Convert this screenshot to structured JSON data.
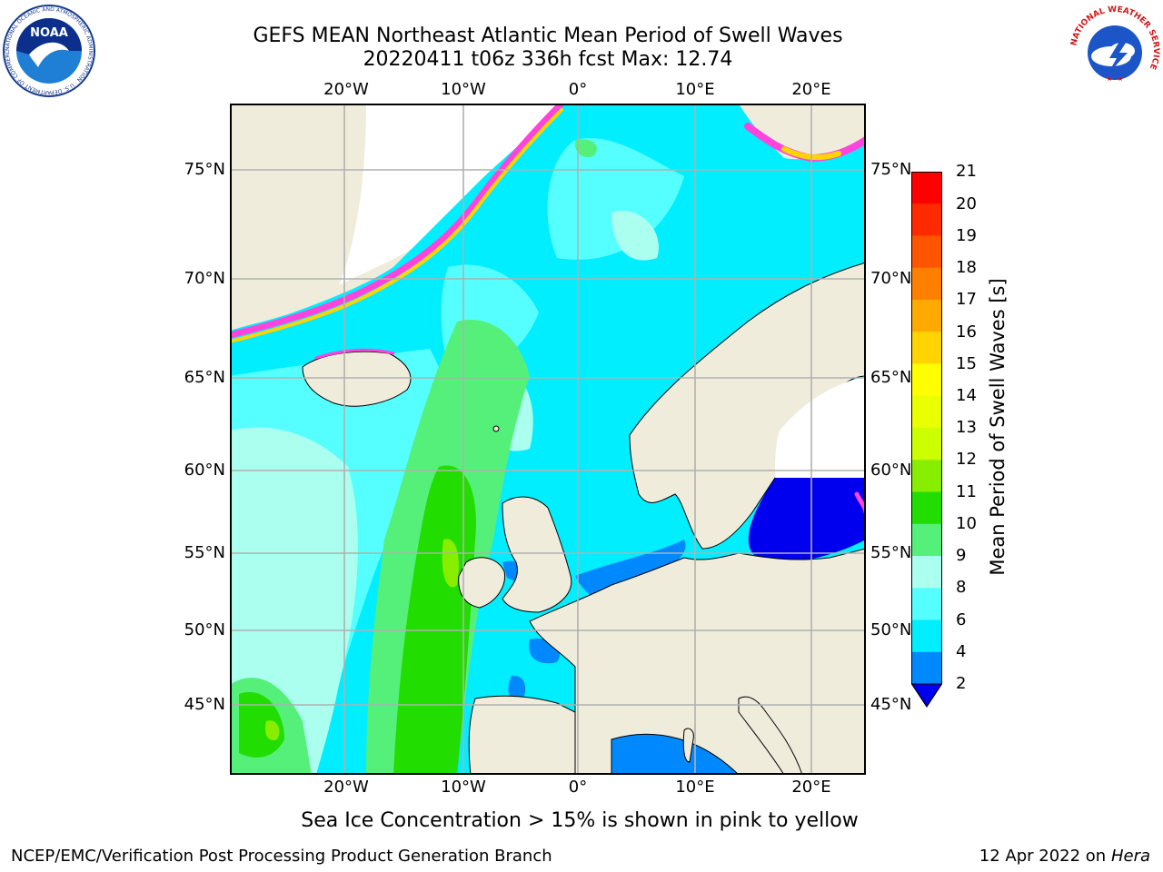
{
  "header": {
    "title_line1": "GEFS MEAN Northeast Atlantic Mean Period of Swell Waves",
    "title_line2": "20220411 t06z 336h fcst   Max: 12.74"
  },
  "logos": {
    "left": "NOAA",
    "left_ring": "NATIONAL OCEANIC AND ATMOSPHERIC ADMINISTRATION · U.S. DEPARTMENT OF COMMERCE",
    "right_ring": "NATIONAL WEATHER SERVICE"
  },
  "map": {
    "lon_labels": [
      "20°W",
      "10°W",
      "0°",
      "10°E",
      "20°E"
    ],
    "lat_labels": [
      "75°N",
      "70°N",
      "65°N",
      "60°N",
      "55°N",
      "50°N",
      "45°N"
    ],
    "land_color": "#efecdc",
    "grid_color": "#b0b0b0"
  },
  "colorbar": {
    "label": "Mean Period of Swell Waves [s]",
    "ticks": [
      "21",
      "20",
      "19",
      "18",
      "17",
      "16",
      "15",
      "14",
      "13",
      "12",
      "11",
      "10",
      "9",
      "8",
      "6",
      "4",
      "2"
    ],
    "colors_top_to_bottom": [
      "#ff0000",
      "#ff2a00",
      "#ff5500",
      "#ff8000",
      "#ffaa00",
      "#ffd400",
      "#ffff00",
      "#eaff00",
      "#ccff00",
      "#88ee00",
      "#22dd00",
      "#55f07a",
      "#aaffee",
      "#55ffff",
      "#00eeff",
      "#0088ff"
    ],
    "under_color": "#0000ee"
  },
  "footer": {
    "ice_note": "Sea Ice Concentration > 15% is shown in pink to yellow",
    "branch": "NCEP/EMC/Verification Post Processing Product Generation Branch",
    "date_prefix": "12 Apr 2022 on ",
    "date_host": "Hera"
  }
}
